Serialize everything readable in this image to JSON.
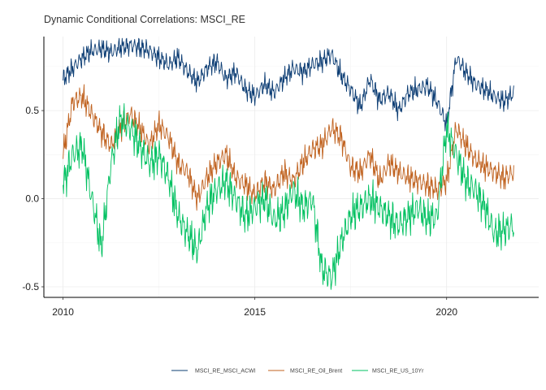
{
  "chart_data": {
    "type": "line",
    "title": "Dynamic Conditional Correlations: MSCI_RE",
    "xlabel": "",
    "ylabel": "",
    "x_ticks": [
      "2010",
      "2015",
      "2020"
    ],
    "y_ticks": [
      "0.5",
      "0.0",
      "-0.5"
    ],
    "xlim": [
      2009.5,
      2022.4
    ],
    "ylim": [
      -0.56,
      0.92
    ],
    "grid": true,
    "legend_position": "bottom",
    "x": [
      2010.0,
      2010.25,
      2010.5,
      2010.75,
      2011.0,
      2011.25,
      2011.5,
      2011.75,
      2012.0,
      2012.25,
      2012.5,
      2012.75,
      2013.0,
      2013.25,
      2013.5,
      2013.75,
      2014.0,
      2014.25,
      2014.5,
      2014.75,
      2015.0,
      2015.25,
      2015.5,
      2015.75,
      2016.0,
      2016.25,
      2016.5,
      2016.75,
      2017.0,
      2017.25,
      2017.5,
      2017.75,
      2018.0,
      2018.25,
      2018.5,
      2018.75,
      2019.0,
      2019.25,
      2019.5,
      2019.75,
      2020.0,
      2020.25,
      2020.5,
      2020.75,
      2021.0,
      2021.25,
      2021.5,
      2021.75
    ],
    "series": [
      {
        "name": "MSCI_RE_MSCI_ACWI",
        "color": "#0b3c73",
        "values": [
          0.68,
          0.74,
          0.8,
          0.84,
          0.85,
          0.83,
          0.86,
          0.87,
          0.86,
          0.84,
          0.8,
          0.76,
          0.8,
          0.72,
          0.66,
          0.74,
          0.78,
          0.68,
          0.72,
          0.62,
          0.58,
          0.65,
          0.6,
          0.68,
          0.74,
          0.72,
          0.76,
          0.78,
          0.82,
          0.7,
          0.62,
          0.52,
          0.68,
          0.56,
          0.6,
          0.5,
          0.6,
          0.62,
          0.64,
          0.55,
          0.42,
          0.8,
          0.72,
          0.65,
          0.62,
          0.58,
          0.55,
          0.6
        ]
      },
      {
        "name": "MSCI_RE_Oil_Brent",
        "color": "#c0621f",
        "values": [
          0.25,
          0.55,
          0.58,
          0.48,
          0.38,
          0.3,
          0.4,
          0.48,
          0.4,
          0.3,
          0.42,
          0.35,
          0.2,
          0.15,
          0.0,
          0.12,
          0.2,
          0.25,
          0.12,
          0.08,
          0.02,
          0.1,
          0.05,
          0.15,
          0.1,
          0.2,
          0.28,
          0.3,
          0.4,
          0.35,
          0.18,
          0.15,
          0.25,
          0.1,
          0.2,
          0.15,
          0.12,
          0.1,
          0.08,
          0.05,
          0.1,
          0.4,
          0.3,
          0.22,
          0.18,
          0.15,
          0.12,
          0.15
        ]
      },
      {
        "name": "MSCI_RE_US_10Yr",
        "color": "#00c060",
        "values": [
          0.08,
          0.25,
          0.3,
          0.0,
          -0.28,
          0.2,
          0.45,
          0.4,
          0.3,
          0.2,
          0.25,
          0.12,
          -0.1,
          -0.2,
          -0.3,
          -0.05,
          0.05,
          0.1,
          0.0,
          -0.1,
          -0.05,
          0.0,
          -0.12,
          -0.08,
          0.05,
          -0.05,
          0.0,
          -0.4,
          -0.45,
          -0.25,
          -0.1,
          -0.05,
          0.0,
          -0.05,
          -0.1,
          -0.15,
          -0.1,
          -0.05,
          -0.12,
          -0.1,
          0.4,
          0.25,
          0.1,
          0.05,
          -0.05,
          -0.2,
          -0.18,
          -0.15
        ]
      }
    ]
  }
}
